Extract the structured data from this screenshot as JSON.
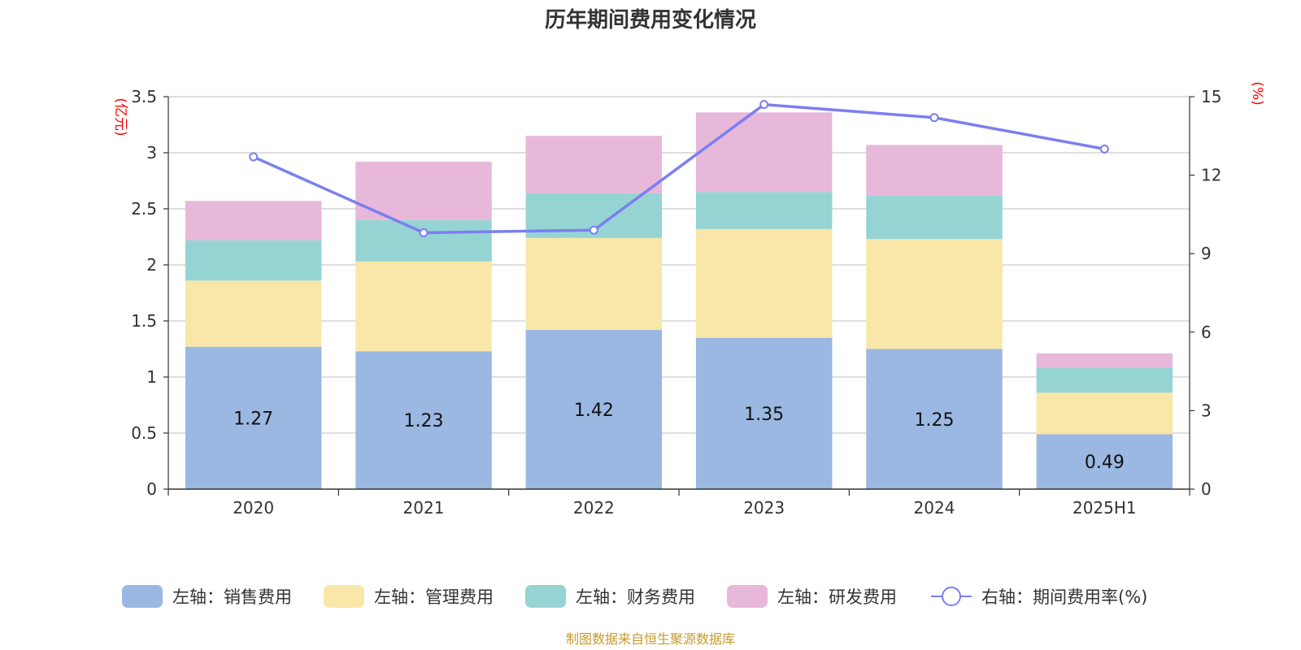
{
  "chart_data": {
    "type": "bar",
    "stacked": true,
    "title": "历年期间费用变化情况",
    "categories": [
      "2020",
      "2021",
      "2022",
      "2023",
      "2024",
      "2025H1"
    ],
    "left_axis": {
      "unit": "(亿元)",
      "ylim": [
        0,
        3.5
      ],
      "ticks": [
        "0",
        "0.5",
        "1",
        "1.5",
        "2",
        "2.5",
        "3",
        "3.5"
      ]
    },
    "right_axis": {
      "unit": "(%)",
      "ylim": [
        0,
        15
      ],
      "ticks": [
        "0",
        "3",
        "6",
        "9",
        "12",
        "15"
      ]
    },
    "series": [
      {
        "name": "左轴：销售费用",
        "axis": "left",
        "color": "#9bb8e2",
        "values": [
          1.27,
          1.23,
          1.42,
          1.35,
          1.25,
          0.49
        ],
        "labels": [
          "1.27",
          "1.23",
          "1.42",
          "1.35",
          "1.25",
          "0.49"
        ]
      },
      {
        "name": "左轴：管理费用",
        "axis": "left",
        "color": "#f8e7a8",
        "values": [
          0.59,
          0.8,
          0.82,
          0.97,
          0.98,
          0.37
        ]
      },
      {
        "name": "左轴：财务费用",
        "axis": "left",
        "color": "#96d4d4",
        "values": [
          0.36,
          0.37,
          0.4,
          0.33,
          0.39,
          0.22
        ]
      },
      {
        "name": "左轴：研发费用",
        "axis": "left",
        "color": "#e7b8d9",
        "values": [
          0.35,
          0.52,
          0.51,
          0.71,
          0.45,
          0.13
        ]
      },
      {
        "name": "右轴：期间费用率(%)",
        "axis": "right",
        "type": "line",
        "color": "#7b7ff0",
        "values": [
          12.7,
          9.8,
          9.9,
          14.7,
          14.2,
          13.0
        ]
      }
    ],
    "grid": true,
    "legend_position": "bottom"
  },
  "source_note": "制图数据来自恒生聚源数据库"
}
